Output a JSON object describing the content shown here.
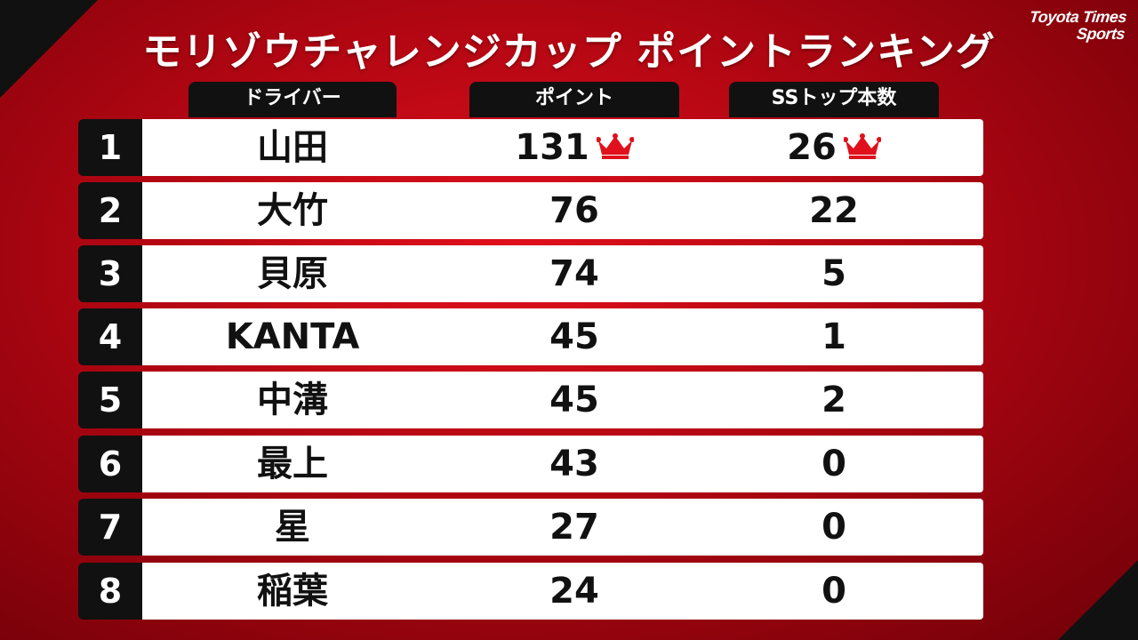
{
  "title": "モリゾウチャレンジカップ ポイントランキング",
  "logo": {
    "line1": "Toyota Times",
    "line2": "Sports"
  },
  "headers": {
    "driver": "ドライバー",
    "points": "ポイント",
    "ss_top": "SSトップ本数"
  },
  "rows": [
    {
      "rank": "1",
      "driver": "山田",
      "points": "131",
      "ss_top": "26"
    },
    {
      "rank": "2",
      "driver": "大竹",
      "points": "76",
      "ss_top": "22"
    },
    {
      "rank": "3",
      "driver": "貝原",
      "points": "74",
      "ss_top": "5"
    },
    {
      "rank": "4",
      "driver": "KANTA",
      "points": "45",
      "ss_top": "1"
    },
    {
      "rank": "5",
      "driver": "中溝",
      "points": "45",
      "ss_top": "2"
    },
    {
      "rank": "6",
      "driver": "最上",
      "points": "43",
      "ss_top": "0"
    },
    {
      "rank": "7",
      "driver": "星",
      "points": "27",
      "ss_top": "0"
    },
    {
      "rank": "8",
      "driver": "稲葉",
      "points": "24",
      "ss_top": "0"
    }
  ],
  "colors": {
    "accent": "#e0101c",
    "crown": "#e0101c",
    "dark": "#111111"
  }
}
